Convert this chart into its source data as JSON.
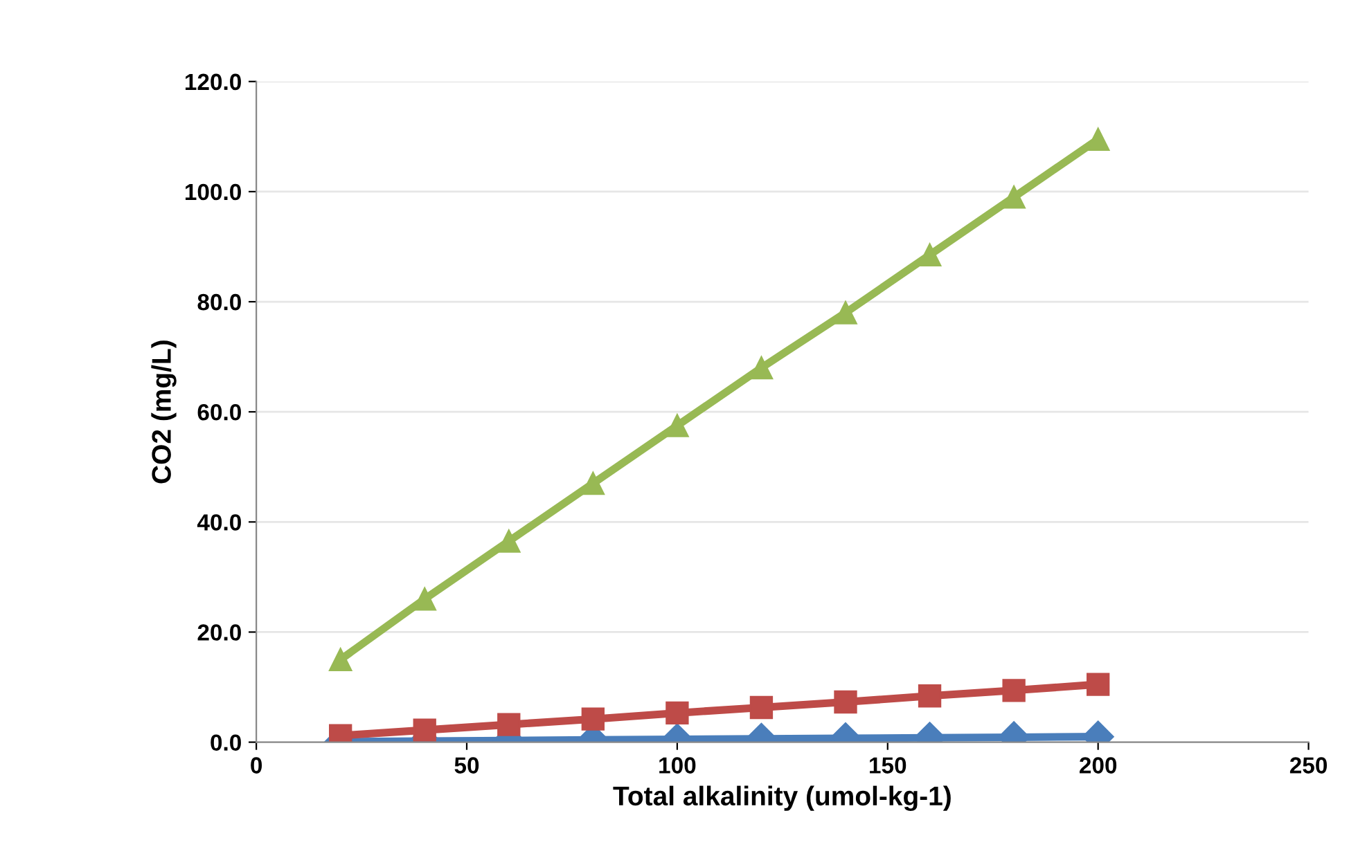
{
  "chart_data": {
    "type": "line",
    "xlabel": "Total alkalinity (umol-kg-1)",
    "ylabel": "CO2 (mg/L)",
    "x": [
      20,
      40,
      60,
      80,
      100,
      120,
      140,
      160,
      180,
      200
    ],
    "series": [
      {
        "color": "#4a7ebb",
        "marker": "diamond",
        "values": [
          0.1,
          0.2,
          0.3,
          0.4,
          0.5,
          0.6,
          0.7,
          0.8,
          0.9,
          1.0
        ]
      },
      {
        "color": "#be4b48",
        "marker": "square",
        "values": [
          1.2,
          2.2,
          3.2,
          4.2,
          5.3,
          6.3,
          7.3,
          8.4,
          9.4,
          10.5
        ]
      },
      {
        "color": "#98b954",
        "marker": "triangle",
        "values": [
          15,
          26,
          36.5,
          47,
          57.5,
          68,
          78,
          88.5,
          99,
          109.5
        ]
      }
    ],
    "xlim": [
      0,
      250
    ],
    "xticks": [
      0,
      50,
      100,
      150,
      200,
      250
    ],
    "ylim": [
      0,
      120
    ],
    "yticks": [
      {
        "value": 0,
        "label": "0.0"
      },
      {
        "value": 20,
        "label": "20.0"
      },
      {
        "value": 40,
        "label": "40.0"
      },
      {
        "value": 60,
        "label": "60.0"
      },
      {
        "value": 80,
        "label": "80.0"
      },
      {
        "value": 100,
        "label": "100.0"
      },
      {
        "value": 120,
        "label": "120.0"
      }
    ],
    "grid": "y",
    "line_style": "solid"
  }
}
